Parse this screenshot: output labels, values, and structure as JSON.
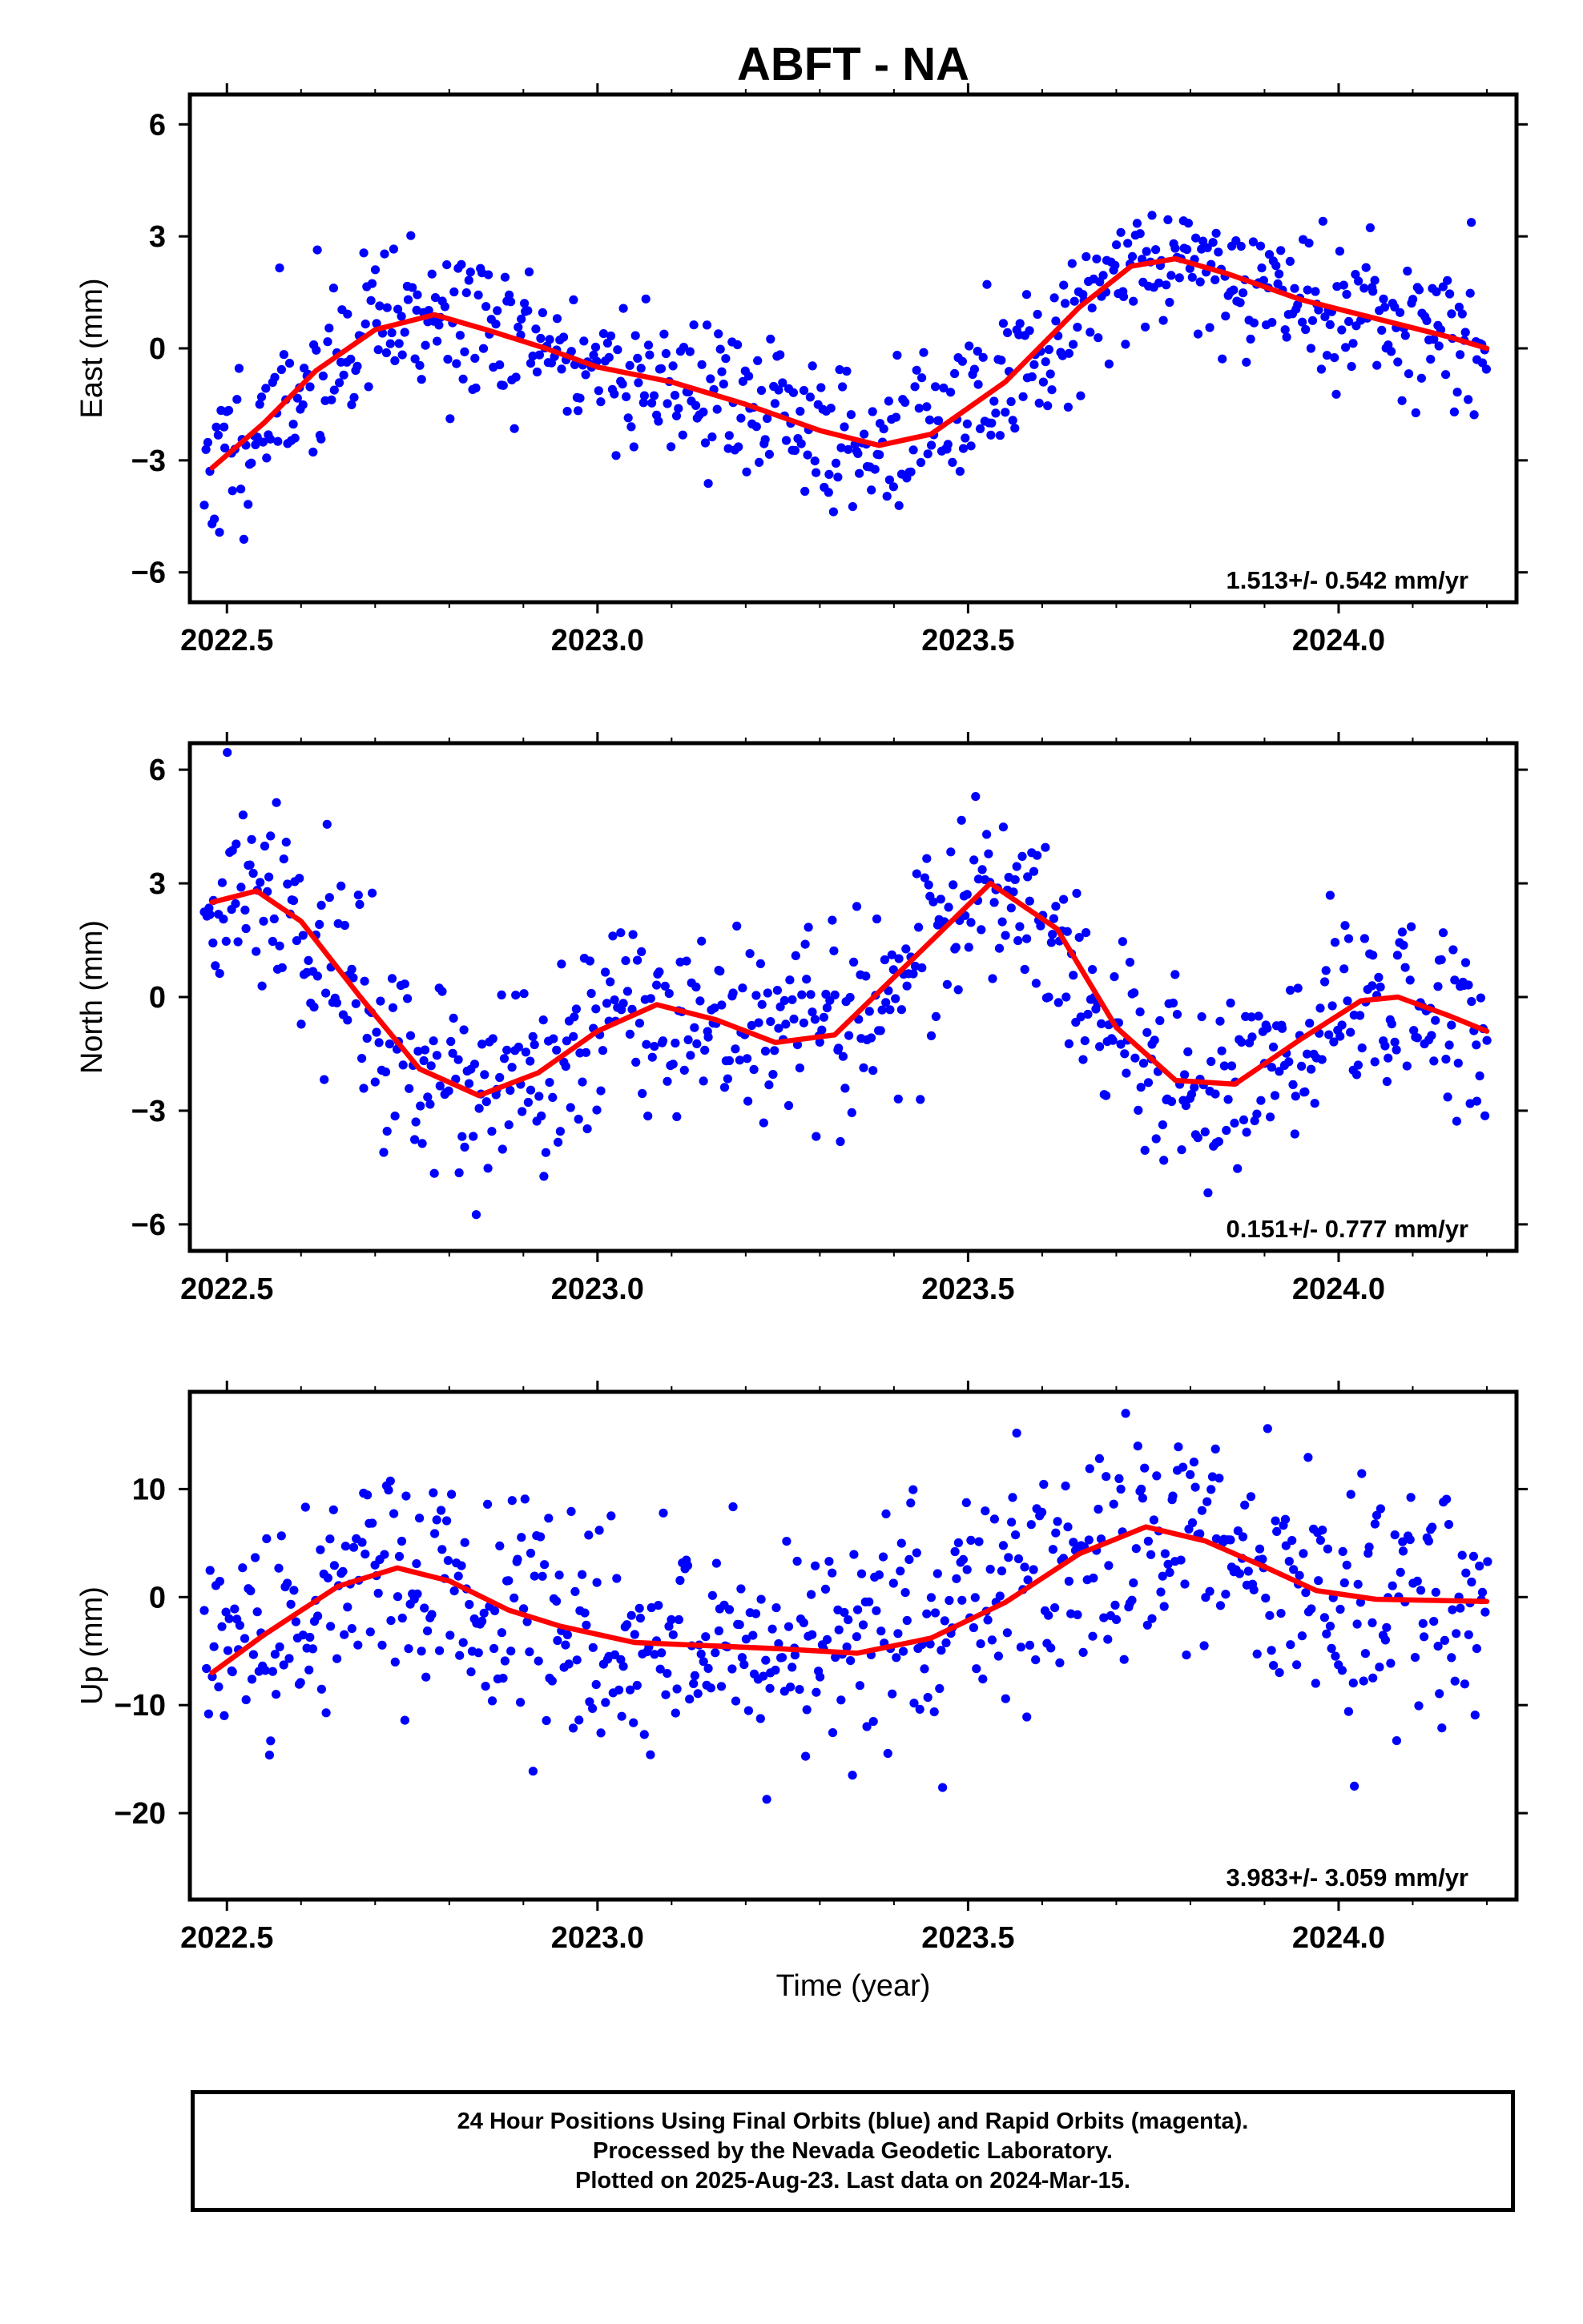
{
  "title": "ABFT - NA",
  "colors": {
    "points": "#0000ff",
    "fit": "#ff0000",
    "frame": "#000000"
  },
  "x_axis_label": "Time (year)",
  "footer": {
    "line1": "24 Hour Positions Using Final Orbits (blue) and Rapid Orbits (magenta).",
    "line2": "Processed by the Nevada Geodetic Laboratory.",
    "line3": "Plotted on 2025-Aug-23. Last data on 2024-Mar-15."
  },
  "chart_data": [
    {
      "type": "scatter",
      "id": "east",
      "ylabel": "East (mm)",
      "xlim": [
        2022.45,
        2024.24
      ],
      "ylim": [
        -6.8,
        6.8
      ],
      "xticks": [
        2022.5,
        2023.0,
        2023.5,
        2024.0
      ],
      "xtick_labels": [
        "2022.5",
        "2023.0",
        "2023.5",
        "2024.0"
      ],
      "yticks": [
        -6,
        -3,
        0,
        3,
        6
      ],
      "ytick_labels": [
        "−6",
        "−3",
        "0",
        "3",
        "6"
      ],
      "rate_text": "1.513+/- 0.542 mm/yr",
      "trend": {
        "x": [
          2022.48,
          2022.55,
          2022.62,
          2022.7,
          2022.78,
          2022.85,
          2022.93,
          2023.0,
          2023.1,
          2023.2,
          2023.3,
          2023.38,
          2023.45,
          2023.55,
          2023.65,
          2023.72,
          2023.78,
          2023.85,
          2023.95,
          2024.05,
          2024.15,
          2024.2
        ],
        "y": [
          -3.2,
          -2.0,
          -0.6,
          0.5,
          0.9,
          0.5,
          0.0,
          -0.5,
          -0.9,
          -1.5,
          -2.2,
          -2.6,
          -2.3,
          -0.9,
          1.1,
          2.2,
          2.4,
          2.0,
          1.3,
          0.8,
          0.3,
          0.0
        ]
      },
      "scatter_model": {
        "seed": 11,
        "n": 680,
        "noise": 1.05,
        "t_start": 2022.47,
        "t_end": 2024.2
      }
    },
    {
      "type": "scatter",
      "id": "north",
      "ylabel": "North (mm)",
      "xlim": [
        2022.45,
        2024.24
      ],
      "ylim": [
        -6.7,
        6.7
      ],
      "xticks": [
        2022.5,
        2023.0,
        2023.5,
        2024.0
      ],
      "xtick_labels": [
        "2022.5",
        "2023.0",
        "2023.5",
        "2024.0"
      ],
      "yticks": [
        -6,
        -3,
        0,
        3,
        6
      ],
      "ytick_labels": [
        "−6",
        "−3",
        "0",
        "3",
        "6"
      ],
      "rate_text": "0.151+/- 0.777 mm/yr",
      "trend": {
        "x": [
          2022.48,
          2022.54,
          2022.6,
          2022.68,
          2022.76,
          2022.84,
          2022.92,
          2023.0,
          2023.08,
          2023.16,
          2023.24,
          2023.32,
          2023.42,
          2023.53,
          2023.62,
          2023.7,
          2023.78,
          2023.86,
          2023.95,
          2024.03,
          2024.08,
          2024.15,
          2024.2
        ],
        "y": [
          2.5,
          2.8,
          2.0,
          0.0,
          -1.9,
          -2.6,
          -2.0,
          -0.9,
          -0.2,
          -0.6,
          -1.2,
          -1.0,
          0.9,
          3.0,
          1.8,
          -0.8,
          -2.2,
          -2.3,
          -1.1,
          -0.1,
          0.0,
          -0.5,
          -0.9
        ]
      },
      "scatter_model": {
        "seed": 29,
        "n": 680,
        "noise": 1.3,
        "t_start": 2022.47,
        "t_end": 2024.2
      }
    },
    {
      "type": "scatter",
      "id": "up",
      "ylabel": "Up (mm)",
      "xlim": [
        2022.45,
        2024.24
      ],
      "ylim": [
        -28,
        19
      ],
      "xticks": [
        2022.5,
        2023.0,
        2023.5,
        2024.0
      ],
      "xtick_labels": [
        "2022.5",
        "2023.0",
        "2023.5",
        "2024.0"
      ],
      "yticks": [
        -20,
        -10,
        0,
        10
      ],
      "ytick_labels": [
        "−20",
        "−10",
        "0",
        "10"
      ],
      "rate_text": "3.983+/- 3.059 mm/yr",
      "trend": {
        "x": [
          2022.48,
          2022.55,
          2022.65,
          2022.73,
          2022.8,
          2022.88,
          2022.95,
          2023.05,
          2023.15,
          2023.25,
          2023.35,
          2023.45,
          2023.55,
          2023.65,
          2023.74,
          2023.82,
          2023.9,
          2023.97,
          2024.05,
          2024.12,
          2024.2
        ],
        "y": [
          -7.0,
          -3.5,
          1.0,
          2.7,
          1.5,
          -1.2,
          -2.7,
          -4.2,
          -4.5,
          -4.8,
          -5.2,
          -3.8,
          -0.5,
          4.0,
          6.5,
          5.2,
          2.8,
          0.6,
          -0.2,
          -0.3,
          -0.4
        ]
      },
      "scatter_model": {
        "seed": 47,
        "n": 680,
        "noise": 5.2,
        "t_start": 2022.47,
        "t_end": 2024.2
      }
    }
  ]
}
